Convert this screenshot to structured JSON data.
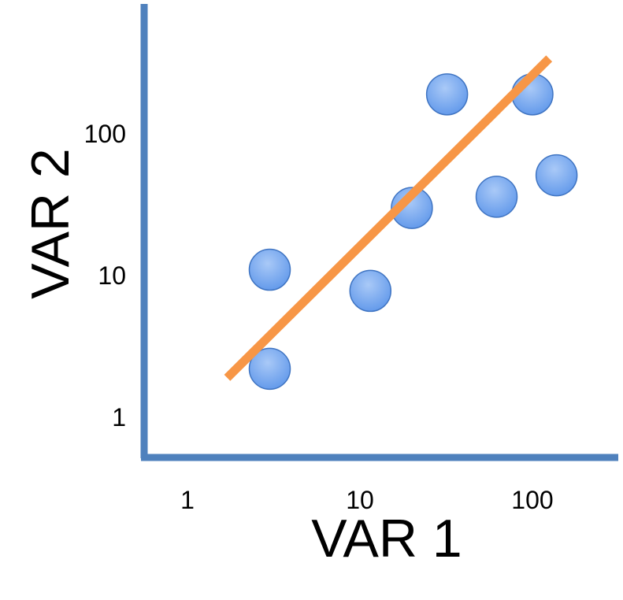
{
  "chart_data": {
    "type": "scatter",
    "title": "",
    "xlabel": "VAR 1",
    "ylabel": "VAR 2",
    "x_scale": "log",
    "y_scale": "log",
    "xlim": [
      0.55,
      250
    ],
    "ylim": [
      0.45,
      900
    ],
    "x_ticks": [
      {
        "value": 1,
        "label": "1"
      },
      {
        "value": 10,
        "label": "10"
      },
      {
        "value": 100,
        "label": "100"
      }
    ],
    "y_ticks": [
      {
        "value": 1,
        "label": "1"
      },
      {
        "value": 10,
        "label": "10"
      },
      {
        "value": 100,
        "label": "100"
      }
    ],
    "grid": false,
    "legend": "none",
    "series": [
      {
        "points": [
          {
            "x": 3,
            "y": 2.2
          },
          {
            "x": 3,
            "y": 11
          },
          {
            "x": 11.5,
            "y": 7.8
          },
          {
            "x": 20,
            "y": 30
          },
          {
            "x": 32,
            "y": 190
          },
          {
            "x": 62,
            "y": 36
          },
          {
            "x": 100,
            "y": 190
          },
          {
            "x": 138,
            "y": 51
          }
        ]
      }
    ],
    "trendline": {
      "from": {
        "x": 1.7,
        "y": 1.9
      },
      "to": {
        "x": 125,
        "y": 340
      }
    },
    "colors": {
      "axis": "#4f81bd",
      "point_fill": "#79aaee",
      "point_stroke": "#3f74c2",
      "trendline": "#f79646"
    }
  }
}
